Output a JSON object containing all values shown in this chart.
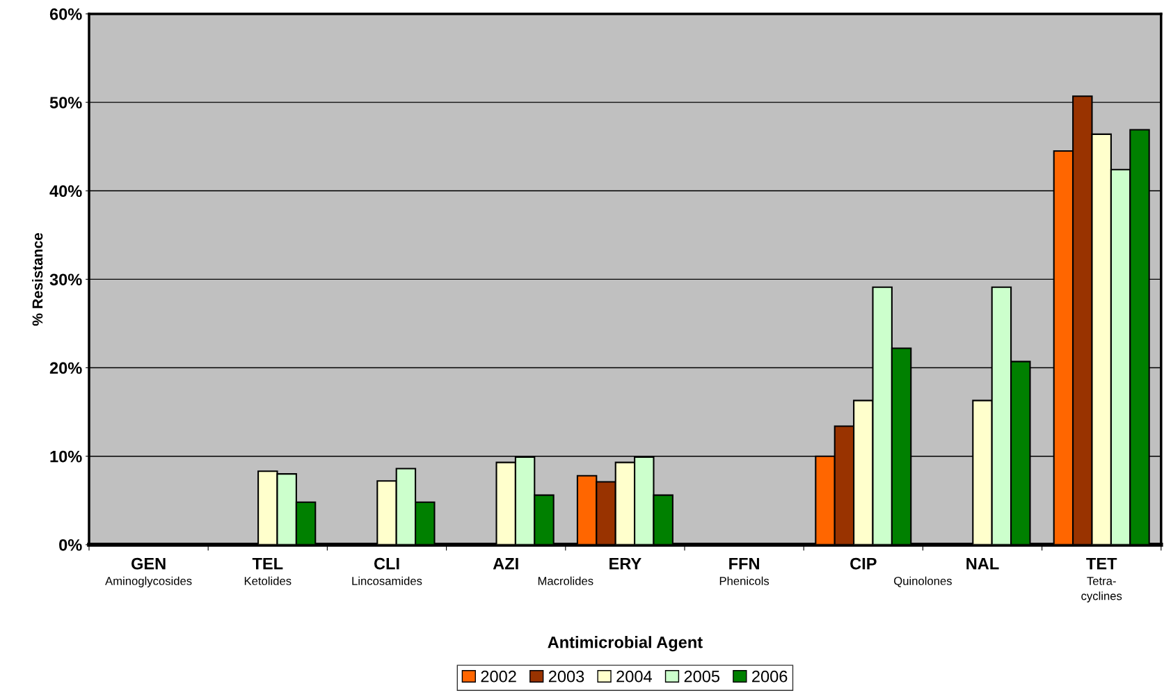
{
  "chart_data": {
    "type": "bar",
    "xlabel": "Antimicrobial Agent",
    "ylabel": "% Resistance",
    "categories": [
      "GEN",
      "TEL",
      "CLI",
      "AZI",
      "ERY",
      "FFN",
      "CIP",
      "NAL",
      "TET"
    ],
    "series": [
      {
        "name": "2002",
        "color": "#ff6600",
        "values": [
          null,
          null,
          null,
          null,
          7.8,
          null,
          10.0,
          null,
          44.5
        ]
      },
      {
        "name": "2003",
        "color": "#993300",
        "values": [
          null,
          null,
          null,
          null,
          7.1,
          null,
          13.4,
          null,
          50.7
        ]
      },
      {
        "name": "2004",
        "color": "#ffffcc",
        "values": [
          null,
          8.3,
          7.2,
          9.3,
          9.3,
          null,
          16.3,
          16.3,
          46.4
        ]
      },
      {
        "name": "2005",
        "color": "#ccffcc",
        "values": [
          null,
          8.0,
          8.6,
          9.9,
          9.9,
          null,
          29.1,
          29.1,
          42.4
        ]
      },
      {
        "name": "2006",
        "color": "#008000",
        "values": [
          null,
          4.8,
          4.8,
          5.6,
          5.6,
          null,
          22.2,
          20.7,
          46.9
        ]
      }
    ],
    "ylim": [
      0,
      60
    ],
    "yticks": [
      {
        "value": 0,
        "label": "0%"
      },
      {
        "value": 10,
        "label": "10%"
      },
      {
        "value": 20,
        "label": "20%"
      },
      {
        "value": 30,
        "label": "30%"
      },
      {
        "value": 40,
        "label": "40%"
      },
      {
        "value": 50,
        "label": "50%"
      },
      {
        "value": 60,
        "label": "60%"
      }
    ],
    "annotations": [
      "Aminoglycosides",
      "Ketolides",
      "Lincosamides",
      "Macrolides",
      "Phenicols",
      "Quinolones",
      "Tetra-\ncyclines"
    ],
    "grid": "y",
    "legend": "bottom"
  }
}
